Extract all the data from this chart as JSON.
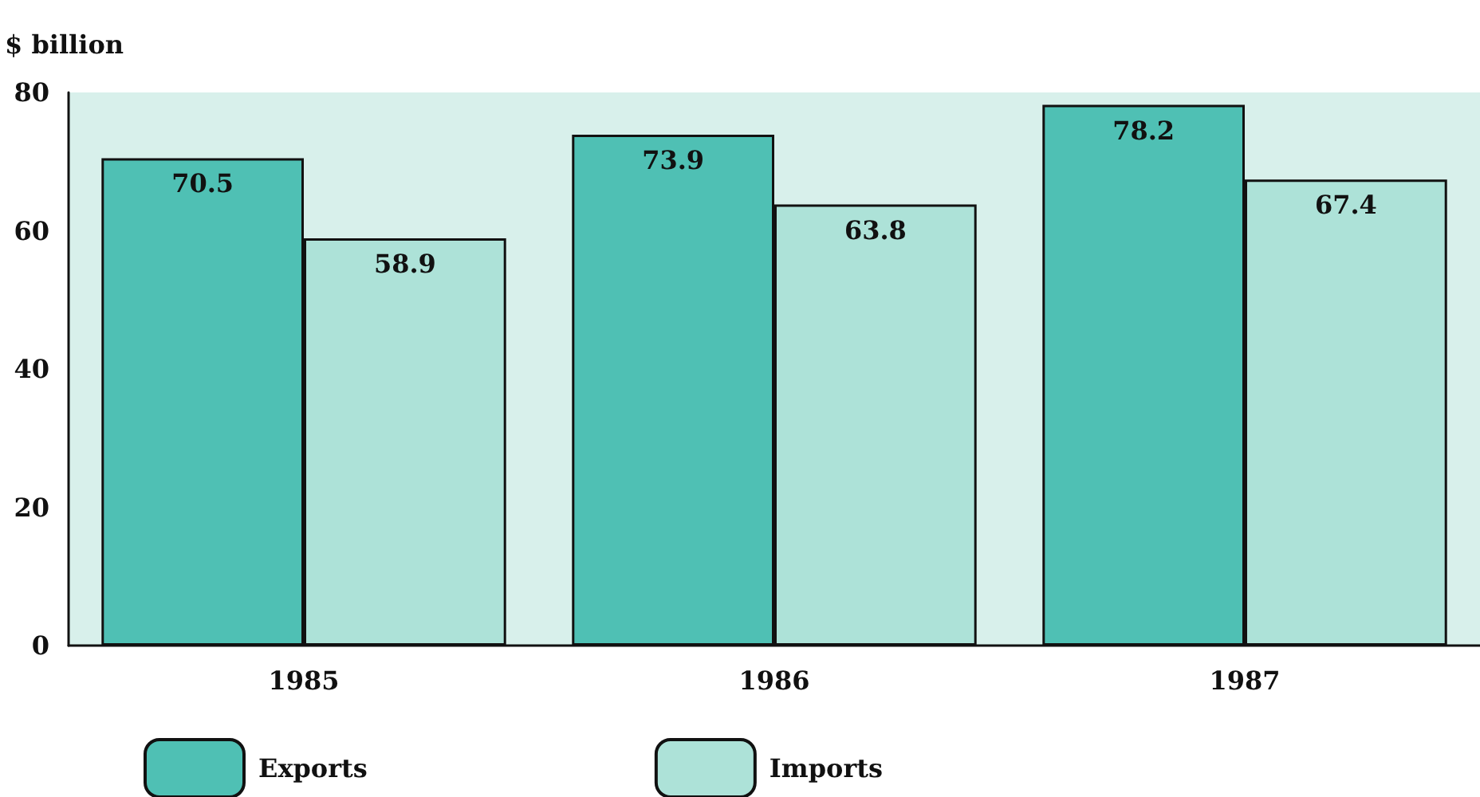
{
  "chart_data": {
    "type": "bar",
    "ylabel": "$ billion",
    "categories": [
      "1985",
      "1986",
      "1987"
    ],
    "series": [
      {
        "name": "Exports",
        "color": "#4fc0b4",
        "values": [
          70.5,
          73.9,
          78.2
        ]
      },
      {
        "name": "Imports",
        "color": "#ade2d8",
        "values": [
          58.9,
          63.8,
          67.4
        ]
      }
    ],
    "ylim": [
      0,
      80
    ],
    "yticks": [
      0,
      20,
      40,
      60,
      80
    ],
    "data_labels": true,
    "grid": false,
    "legend": "bottom left"
  }
}
